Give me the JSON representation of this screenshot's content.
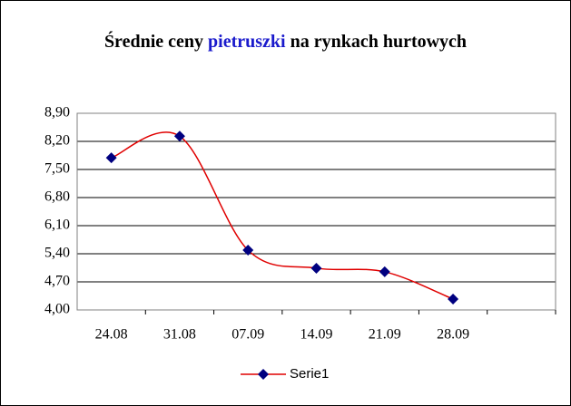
{
  "chart_data": {
    "type": "line",
    "title": [
      "Średnie ceny",
      "pietruszki",
      "na rynkach hurtowych"
    ],
    "title_highlight_color": "#1a1acc",
    "categories": [
      "24.08",
      "31.08",
      "07.09",
      "14.09",
      "21.09",
      "28.09",
      null
    ],
    "series": [
      {
        "name": "Serie1",
        "color": "#e00000",
        "marker_color": "#000080",
        "values": [
          7.79,
          8.33,
          5.49,
          5.04,
          4.95,
          4.27,
          null
        ]
      }
    ],
    "ylim": [
      4,
      8.9
    ],
    "yticks": [
      {
        "value": 4,
        "label": "4,00"
      },
      {
        "value": 4.7,
        "label": "4,70"
      },
      {
        "value": 5.4,
        "label": "5,40"
      },
      {
        "value": 6.1,
        "label": "6,10"
      },
      {
        "value": 6.8,
        "label": "6,80"
      },
      {
        "value": 7.5,
        "label": "7,50"
      },
      {
        "value": 8.2,
        "label": "8,20"
      },
      {
        "value": 8.9,
        "label": "8,90"
      }
    ],
    "grid": true,
    "smooth": true,
    "legend": "bottom"
  }
}
